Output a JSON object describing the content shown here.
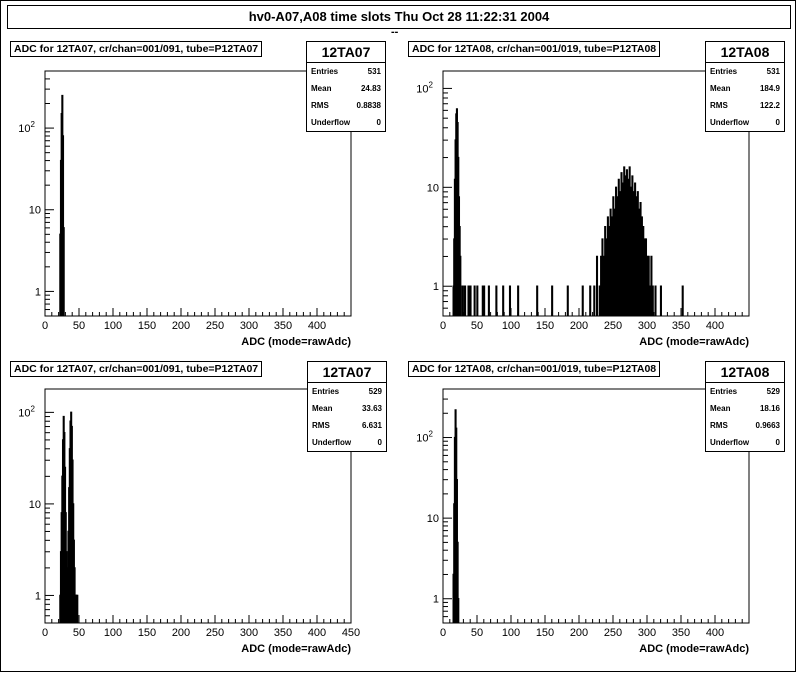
{
  "canvas": {
    "title": "hv0-A07,A08 time slots   Thu Oct 28 11:22:31 2004",
    "subtitle": "--"
  },
  "pads": [
    {
      "title": "ADC for 12TA07,  cr/chan=001/091,  tube=P12TA07",
      "stats": {
        "name": "12TA07",
        "entries_label": "Entries",
        "entries": "531",
        "mean_label": "Mean",
        "mean": "24.83",
        "rms_label": "RMS",
        "rms": "0.8838",
        "underflow_label": "Underflow",
        "underflow": "0"
      },
      "xlabel": "ADC (mode=rawAdc)"
    },
    {
      "title": "ADC for 12TA08,  cr/chan=001/019,  tube=P12TA08",
      "stats": {
        "name": "12TA08",
        "entries_label": "Entries",
        "entries": "531",
        "mean_label": "Mean",
        "mean": "184.9",
        "rms_label": "RMS",
        "rms": "122.2",
        "underflow_label": "Underflow",
        "underflow": "0"
      },
      "xlabel": "ADC (mode=rawAdc)"
    },
    {
      "title": "ADC for 12TA07,  cr/chan=001/091,  tube=P12TA07",
      "stats": {
        "name": "12TA07",
        "entries_label": "Entries",
        "entries": "529",
        "mean_label": "Mean",
        "mean": "33.63",
        "rms_label": "RMS",
        "rms": "6.631",
        "underflow_label": "Underflow",
        "underflow": "0"
      },
      "xlabel": "ADC (mode=rawAdc)"
    },
    {
      "title": "ADC for 12TA08,  cr/chan=001/019,  tube=P12TA08",
      "stats": {
        "name": "12TA08",
        "entries_label": "Entries",
        "entries": "529",
        "mean_label": "Mean",
        "mean": "18.16",
        "rms_label": "RMS",
        "rms": "0.9663",
        "underflow_label": "Underflow",
        "underflow": "0"
      },
      "xlabel": "ADC (mode=rawAdc)"
    }
  ],
  "chart_data": [
    {
      "type": "bar",
      "title": "ADC for 12TA07,  cr/chan=001/091,  tube=P12TA07",
      "xlabel": "ADC (mode=rawAdc)",
      "ylabel": "",
      "xlim": [
        0,
        450
      ],
      "ylim": [
        0.5,
        500
      ],
      "yscale": "log",
      "x_ticks": [
        "0",
        "50",
        "100",
        "150",
        "200",
        "250",
        "300",
        "350",
        "400"
      ],
      "y_ticks": [
        "1",
        "10",
        "10^2"
      ],
      "x": [
        22,
        23,
        24,
        25,
        26,
        27
      ],
      "values": [
        5,
        40,
        150,
        250,
        80,
        6
      ]
    },
    {
      "type": "bar",
      "title": "ADC for 12TA08,  cr/chan=001/019,  tube=P12TA08",
      "xlabel": "ADC (mode=rawAdc)",
      "ylabel": "",
      "xlim": [
        0,
        450
      ],
      "ylim": [
        0.5,
        150
      ],
      "yscale": "log",
      "x_ticks": [
        "0",
        "50",
        "100",
        "150",
        "200",
        "250",
        "300",
        "350",
        "400"
      ],
      "y_ticks": [
        "1",
        "10",
        "10^2"
      ],
      "x": [
        15,
        16,
        17,
        18,
        19,
        20,
        21,
        22,
        23,
        24,
        25,
        28,
        31,
        32,
        37,
        40,
        46,
        50,
        58,
        60,
        67,
        78,
        88,
        98,
        110,
        138,
        160,
        183,
        205,
        216,
        222,
        226,
        230,
        232,
        234,
        236,
        238,
        240,
        242,
        244,
        246,
        248,
        250,
        252,
        254,
        256,
        258,
        260,
        262,
        264,
        266,
        268,
        270,
        272,
        274,
        276,
        278,
        280,
        282,
        284,
        286,
        288,
        290,
        292,
        294,
        296,
        298,
        300,
        302,
        304,
        306,
        308,
        312,
        320,
        352
      ],
      "values": [
        1,
        3,
        12,
        30,
        55,
        62,
        45,
        20,
        8,
        4,
        2,
        1,
        1,
        1,
        1,
        1,
        1,
        1,
        1,
        1,
        1,
        1,
        1,
        1,
        1,
        1,
        1,
        1,
        1,
        1,
        1,
        2,
        1,
        2,
        3,
        2,
        4,
        3,
        5,
        4,
        6,
        5,
        8,
        6,
        10,
        8,
        12,
        9,
        14,
        11,
        16,
        13,
        15,
        12,
        16,
        10,
        13,
        9,
        11,
        8,
        9,
        6,
        7,
        5,
        4,
        3,
        3,
        2,
        2,
        1,
        2,
        1,
        1,
        1,
        1
      ]
    },
    {
      "type": "bar",
      "title": "ADC for 12TA07,  cr/chan=001/091,  tube=P12TA07",
      "xlabel": "ADC (mode=rawAdc)",
      "ylabel": "",
      "xlim": [
        0,
        450
      ],
      "ylim": [
        0.5,
        180
      ],
      "yscale": "log",
      "x_ticks": [
        "0",
        "50",
        "100",
        "150",
        "200",
        "250",
        "300",
        "350",
        "400",
        "450"
      ],
      "y_ticks": [
        "1",
        "10",
        "10^2"
      ],
      "x": [
        22,
        23,
        24,
        25,
        26,
        27,
        28,
        29,
        30,
        31,
        32,
        33,
        34,
        35,
        36,
        37,
        38,
        39,
        40,
        41,
        42,
        43,
        44,
        45,
        46,
        47
      ],
      "values": [
        1,
        3,
        8,
        20,
        50,
        90,
        60,
        25,
        8,
        3,
        1,
        2,
        5,
        15,
        40,
        80,
        100,
        70,
        30,
        10,
        4,
        2,
        1,
        1,
        1,
        1
      ]
    },
    {
      "type": "bar",
      "title": "ADC for 12TA08,  cr/chan=001/019,  tube=P12TA08",
      "xlabel": "ADC (mode=rawAdc)",
      "ylabel": "",
      "xlim": [
        0,
        450
      ],
      "ylim": [
        0.5,
        400
      ],
      "yscale": "log",
      "x_ticks": [
        "0",
        "50",
        "100",
        "150",
        "200",
        "250",
        "300",
        "350",
        "400"
      ],
      "y_ticks": [
        "1",
        "10",
        "10^2"
      ],
      "x": [
        15,
        16,
        17,
        18,
        19,
        20,
        21,
        22
      ],
      "values": [
        2,
        15,
        100,
        220,
        130,
        30,
        5,
        1
      ]
    }
  ]
}
